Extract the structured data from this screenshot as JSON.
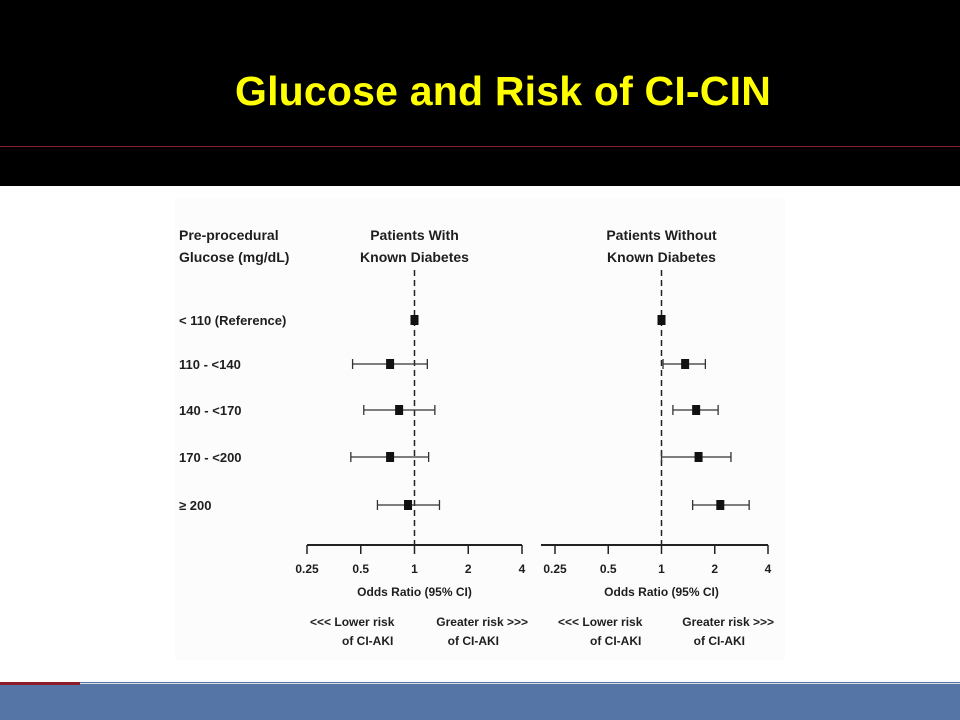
{
  "slide": {
    "title": "Glucose and Risk of CI-CIN",
    "colors": {
      "header_bg": "#000000",
      "title": "#ffff00",
      "footer_bg": "#5575a6",
      "accent": "#8a1c2c"
    }
  },
  "chart_data": {
    "type": "forest",
    "row_header": [
      "Pre-procedural",
      "Glucose (mg/dL)"
    ],
    "categories": [
      "< 110 (Reference)",
      "110 - <140",
      "140 - <170",
      "170 - <200",
      "≥ 200"
    ],
    "x_scale": "log",
    "xlim": [
      0.25,
      4
    ],
    "xticks": [
      0.25,
      0.5,
      1,
      2,
      4
    ],
    "xtick_labels": [
      "0.25",
      "0.5",
      "1",
      "2",
      "4"
    ],
    "reference_line": 1,
    "xlabel": "Odds Ratio (95% CI)",
    "direction_labels": {
      "left": [
        "<<< Lower risk",
        "of CI-AKI"
      ],
      "right": [
        "Greater risk >>>",
        "of CI-AKI"
      ]
    },
    "panels": [
      {
        "title": [
          "Patients With",
          "Known Diabetes"
        ],
        "odds_ratio": [
          1.0,
          0.73,
          0.82,
          0.73,
          0.92
        ],
        "ci_low": [
          null,
          0.45,
          0.52,
          0.44,
          0.62
        ],
        "ci_high": [
          null,
          1.18,
          1.3,
          1.2,
          1.38
        ]
      },
      {
        "title": [
          "Patients Without",
          "Known Diabetes"
        ],
        "odds_ratio": [
          1.0,
          1.36,
          1.57,
          1.62,
          2.15
        ],
        "ci_low": [
          null,
          1.02,
          1.16,
          1.0,
          1.5
        ],
        "ci_high": [
          null,
          1.77,
          2.09,
          2.47,
          3.13
        ]
      }
    ]
  }
}
